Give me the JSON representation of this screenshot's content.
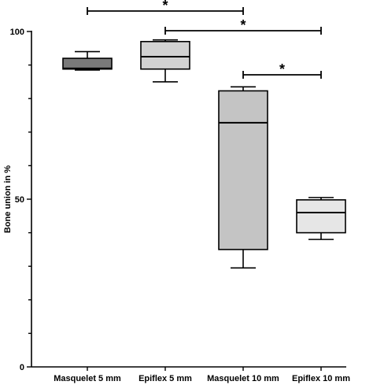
{
  "chart_data": {
    "type": "box",
    "title": "",
    "xlabel": "",
    "ylabel": "Bone union in %",
    "ylim": [
      0,
      100
    ],
    "yticks": [
      0,
      50,
      100
    ],
    "grid": false,
    "categories": [
      "Masquelet 5 mm",
      "Epiflex 5 mm",
      "Masquelet 10 mm",
      "Epiflex 10 mm"
    ],
    "series": [
      {
        "min": 88.5,
        "q1": 88.8,
        "median": 89.0,
        "q3": 92.0,
        "max": 94.0,
        "color": "#7a7a7a"
      },
      {
        "min": 85.0,
        "q1": 88.8,
        "median": 92.5,
        "q3": 97.0,
        "max": 97.5,
        "color": "#d2d2d2"
      },
      {
        "min": 29.5,
        "q1": 35.0,
        "median": 72.8,
        "q3": 82.3,
        "max": 83.5,
        "color": "#c4c4c4"
      },
      {
        "min": 38.0,
        "q1": 40.0,
        "median": 46.0,
        "q3": 49.8,
        "max": 50.5,
        "color": "#e6e6e6"
      }
    ],
    "significance": [
      {
        "from": 0,
        "to": 2,
        "label": "*"
      },
      {
        "from": 1,
        "to": 3,
        "label": "*"
      },
      {
        "from": 2,
        "to": 3,
        "label": "*"
      }
    ]
  }
}
